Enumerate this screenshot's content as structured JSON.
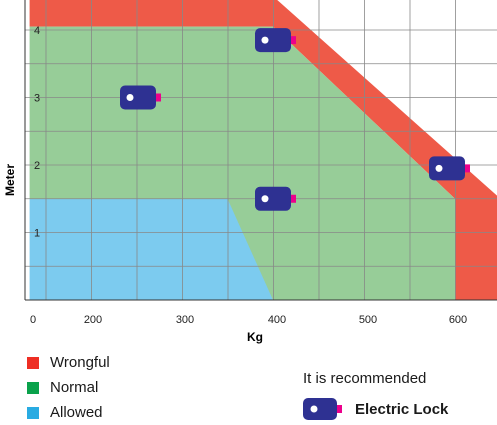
{
  "chart_data": {
    "type": "area",
    "xlabel": "Kg",
    "ylabel": "Meter",
    "x_ticks": [
      "0",
      "200",
      "300",
      "400",
      "500",
      "600"
    ],
    "y_ticks": [
      "1",
      "2",
      "3",
      "4"
    ],
    "xlim": [
      100,
      650
    ],
    "ylim": [
      0,
      5
    ],
    "grid": true,
    "zones": [
      {
        "name": "Wrongful",
        "color": "#ee5a48"
      },
      {
        "name": "Normal",
        "color": "#97cd98"
      },
      {
        "name": "Allowed",
        "color": "#7ccbef"
      }
    ],
    "markers": [
      {
        "x": 400,
        "y": 3.85
      },
      {
        "x": 260,
        "y": 3.0
      },
      {
        "x": 400,
        "y": 1.5
      },
      {
        "x": 585,
        "y": 1.95
      }
    ]
  },
  "legend": {
    "items": [
      {
        "label": "Wrongful",
        "color": "#ee2e24"
      },
      {
        "label": "Normal",
        "color": "#0aa24b"
      },
      {
        "label": "Allowed",
        "color": "#29abe2"
      }
    ]
  },
  "recommendation": {
    "title": "It is recommended",
    "label": "Electric Lock",
    "icon": "electric-lock-icon"
  },
  "colors": {
    "lock_body": "#2e3192",
    "lock_tab": "#ec008c",
    "grid": "#888888"
  }
}
